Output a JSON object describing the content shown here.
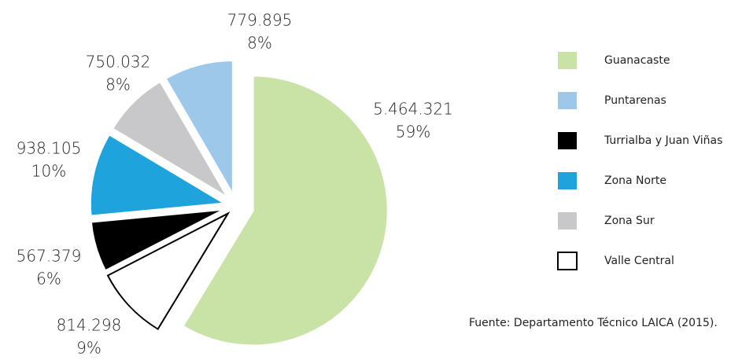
{
  "chart_data": {
    "type": "pie",
    "categories": [
      "Guanacaste",
      "Puntarenas",
      "Turrialba y Juan Viñas",
      "Zona Norte",
      "Zona Sur",
      "Valle Central"
    ],
    "colors": [
      "#c9e2a6",
      "#9dc8ea",
      "#000000",
      "#1fa3dc",
      "#c8c8ca",
      "#ffffff"
    ],
    "values": [
      5464321,
      779895,
      567379,
      938105,
      750032,
      814298
    ],
    "value_labels": [
      "5.464.321",
      "779.895",
      "567.379",
      "938.105",
      "750.032",
      "814.298"
    ],
    "percents": [
      59,
      8,
      6,
      10,
      8,
      9
    ],
    "percent_labels": [
      "59%",
      "8%",
      "6%",
      "10%",
      "8%",
      "9%"
    ],
    "source": "Fuente: Departamento Técnico LAICA (2015)."
  }
}
